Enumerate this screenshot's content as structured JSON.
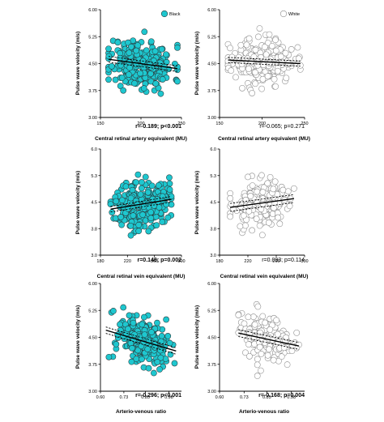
{
  "legend": {
    "black": {
      "label": "Black"
    },
    "white": {
      "label": "White"
    }
  },
  "colors": {
    "black_fill": "#1ec7cf",
    "black_stroke": "#2a3a3c",
    "white_fill": "#ffffff",
    "white_stroke": "#8a8a8a",
    "line": "#000000"
  },
  "chart_data": [
    {
      "type": "scatter",
      "group": "black",
      "xlabel": "Central retinal artery equivalent (MU)",
      "ylabel": "Pulse wave velocity (m/s)",
      "xlim": [
        150,
        250
      ],
      "ylim": [
        3.0,
        6.0
      ],
      "xticks": [
        "150",
        "200",
        "250"
      ],
      "yticks": [
        "3.00",
        "3.75",
        "4.50",
        "5.25",
        "6.00"
      ],
      "annotation": "r=-0.189; p<0.001",
      "x_range": [
        160,
        245
      ],
      "center": [
        200,
        4.5
      ],
      "spread": [
        20,
        0.33
      ],
      "n": 260,
      "seed": 11,
      "regression": {
        "x": [
          160,
          245
        ],
        "y": [
          4.62,
          4.36
        ],
        "ci_half": 0.05
      },
      "legend_position": "top-right"
    },
    {
      "type": "scatter",
      "group": "white",
      "xlabel": "Central retinal artery equivalent (MU)",
      "ylabel": "Pulse wave velocity (m/s)",
      "xlim": [
        150,
        250
      ],
      "ylim": [
        3.0,
        6.0
      ],
      "xticks": [
        "150",
        "200",
        "250"
      ],
      "yticks": [
        "3.00",
        "3.75",
        "4.50",
        "5.25",
        "6.00"
      ],
      "annotation": "r=-0.065; p=0.271",
      "x_range": [
        160,
        245
      ],
      "center": [
        198,
        4.55
      ],
      "spread": [
        20,
        0.3
      ],
      "n": 230,
      "seed": 23,
      "regression": {
        "x": [
          160,
          245
        ],
        "y": [
          4.6,
          4.5
        ],
        "ci_half": 0.045
      },
      "legend_position": "top-right"
    },
    {
      "type": "scatter",
      "group": "black",
      "xlabel": "Central retinal vein equivalent (MU)",
      "ylabel": "Pulse wave velocity (m/s)",
      "xlim": [
        180,
        300
      ],
      "ylim": [
        3.0,
        6.0
      ],
      "xticks": [
        "180",
        "220",
        "260",
        "300"
      ],
      "yticks": [
        "3.0",
        "3.8",
        "4.5",
        "5.3",
        "6.0"
      ],
      "annotation": "r=0.148; p=0.002",
      "x_range": [
        195,
        285
      ],
      "center": [
        240,
        4.5
      ],
      "spread": [
        20,
        0.35
      ],
      "n": 260,
      "seed": 37,
      "regression": {
        "x": [
          195,
          285
        ],
        "y": [
          4.3,
          4.58
        ],
        "ci_half": 0.05
      }
    },
    {
      "type": "scatter",
      "group": "white",
      "xlabel": "Central retinal vein equivalent (MU)",
      "ylabel": "Pulse wave velocity (m/s)",
      "xlim": [
        180,
        300
      ],
      "ylim": [
        3.0,
        6.0
      ],
      "xticks": [
        "180",
        "220",
        "260",
        "300"
      ],
      "yticks": [
        "3.0",
        "3.8",
        "4.5",
        "5.3",
        "6.0"
      ],
      "annotation": "r=0.093; p=0.114",
      "x_range": [
        195,
        285
      ],
      "center": [
        238,
        4.5
      ],
      "spread": [
        20,
        0.32
      ],
      "n": 230,
      "seed": 53,
      "regression": {
        "x": [
          195,
          285
        ],
        "y": [
          4.35,
          4.6
        ],
        "ci_half": 0.07
      }
    },
    {
      "type": "scatter",
      "group": "black",
      "xlabel": "Arterio-venous ratio",
      "ylabel": "Pulse wave velocity (m/s)",
      "xlim": [
        0.6,
        1.05
      ],
      "ylim": [
        3.0,
        6.0
      ],
      "xticks": [
        "0.60",
        "0.73",
        "0.85",
        "0.98"
      ],
      "yticks": [
        "3.00",
        "3.75",
        "4.50",
        "5.25",
        "6.00"
      ],
      "annotation": "r=-0.296; p<0.001",
      "x_range": [
        0.63,
        1.02
      ],
      "center": [
        0.84,
        4.5
      ],
      "spread": [
        0.08,
        0.33
      ],
      "n": 260,
      "seed": 71,
      "regression": {
        "x": [
          0.63,
          1.02
        ],
        "y": [
          4.7,
          4.12
        ],
        "ci_half": 0.055
      }
    },
    {
      "type": "scatter",
      "group": "white",
      "xlabel": "Arterio-venous ratio",
      "ylabel": "Pulse wave velocity (m/s)",
      "xlim": [
        0.6,
        1.05
      ],
      "ylim": [
        3.0,
        6.0
      ],
      "xticks": [
        "0.60",
        "0.73",
        "0.85",
        "0.98"
      ],
      "yticks": [
        "3.00",
        "3.75",
        "4.50",
        "5.25",
        "6.00"
      ],
      "annotation": "r=-0.168; p=0.004",
      "x_range": [
        0.7,
        1.02
      ],
      "center": [
        0.86,
        4.4
      ],
      "spread": [
        0.07,
        0.3
      ],
      "n": 210,
      "seed": 89,
      "regression": {
        "x": [
          0.7,
          1.02
        ],
        "y": [
          4.62,
          4.26
        ],
        "ci_half": 0.06
      }
    }
  ]
}
